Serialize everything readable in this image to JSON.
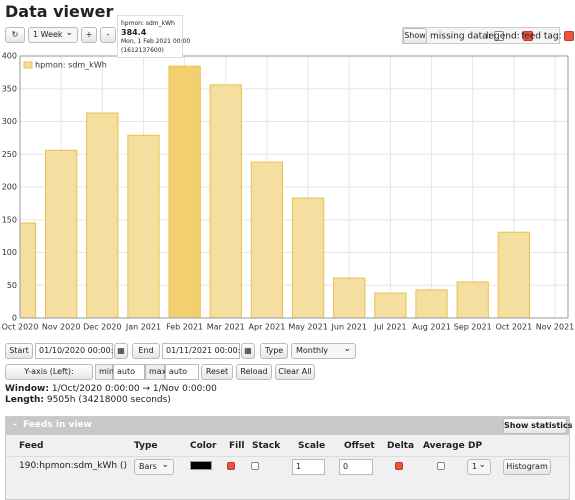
{
  "header": {
    "title": "Data viewer"
  },
  "toolbar": {
    "range": "1 Week",
    "zoom_in": "+",
    "zoom_out": "-",
    "show": "Show",
    "missing_data": "missing data:",
    "missing_data_on": false,
    "legend": "legend:",
    "legend_on": true,
    "feed_tag": "feed tag:",
    "feed_tag_on": true
  },
  "tooltip": {
    "feed": "hpmon: sdm_kWh",
    "value": 384.4,
    "date": "Mon, 1 Feb 2021 00:00",
    "timestamp": "(1612137600)"
  },
  "chart_data": {
    "type": "bar",
    "categories": [
      "Oct 2020",
      "Nov 2020",
      "Dec 2020",
      "Jan 2021",
      "Feb 2021",
      "Mar 2021",
      "Apr 2021",
      "May 2021",
      "Jun 2021",
      "Jul 2021",
      "Aug 2021",
      "Sep 2021",
      "Oct 2021",
      "Nov 2021"
    ],
    "series": [
      {
        "name": "hpmon: sdm_kWh",
        "color": "#f5dfa0",
        "colors": [
          "#f5dfa0",
          "#f5dfa0",
          "#f5dfa0",
          "#f5dfa0",
          "#f2d070",
          "#f5dfa0",
          "#f5dfa0",
          "#f5dfa0",
          "#f5dfa0",
          "#f5dfa0",
          "#f5dfa0",
          "#f5dfa0",
          "#f5dfa0",
          "#f5dfa0"
        ],
        "values": [
          145,
          256,
          313,
          279,
          384.4,
          356,
          238,
          183,
          61,
          38,
          43,
          55,
          131,
          null
        ]
      }
    ],
    "ylim": [
      0,
      400
    ],
    "yticks": [
      0,
      50,
      100,
      150,
      200,
      250,
      300,
      350,
      400
    ],
    "grid": true,
    "legend": "top-left"
  },
  "controls": {
    "start": "Start",
    "start_value": "01/10/2020 00:00:00",
    "end": "End",
    "end_value": "01/11/2021 00:00:00",
    "type": "Type",
    "type_value": "Monthly",
    "yaxis": "Y-axis (Left):",
    "min": "min",
    "min_value": "auto",
    "max": "max",
    "max_value": "auto",
    "reset": "Reset",
    "reload": "Reload",
    "clear": "Clear All"
  },
  "window": {
    "label": "Window:",
    "value": "1/Oct/2020 0:00:00 → 1/Nov 0:00:00"
  },
  "length": {
    "label": "Length:",
    "value": "9505h (34218000 seconds)"
  },
  "feeds": {
    "toggle": "-",
    "title": "Feeds in view",
    "stats": "Show statistics",
    "columns": [
      "Feed",
      "Type",
      "Color",
      "Fill",
      "Stack",
      "Scale",
      "Offset",
      "Delta",
      "Average",
      "DP"
    ],
    "rows": [
      {
        "feed": "190:hpmon:sdm_kWh ()",
        "type": "Bars",
        "color": "#000000",
        "fill": true,
        "stack": false,
        "scale": "1",
        "offset": "0",
        "delta": true,
        "average": false,
        "dp": "1",
        "action": "Histogram"
      }
    ]
  }
}
